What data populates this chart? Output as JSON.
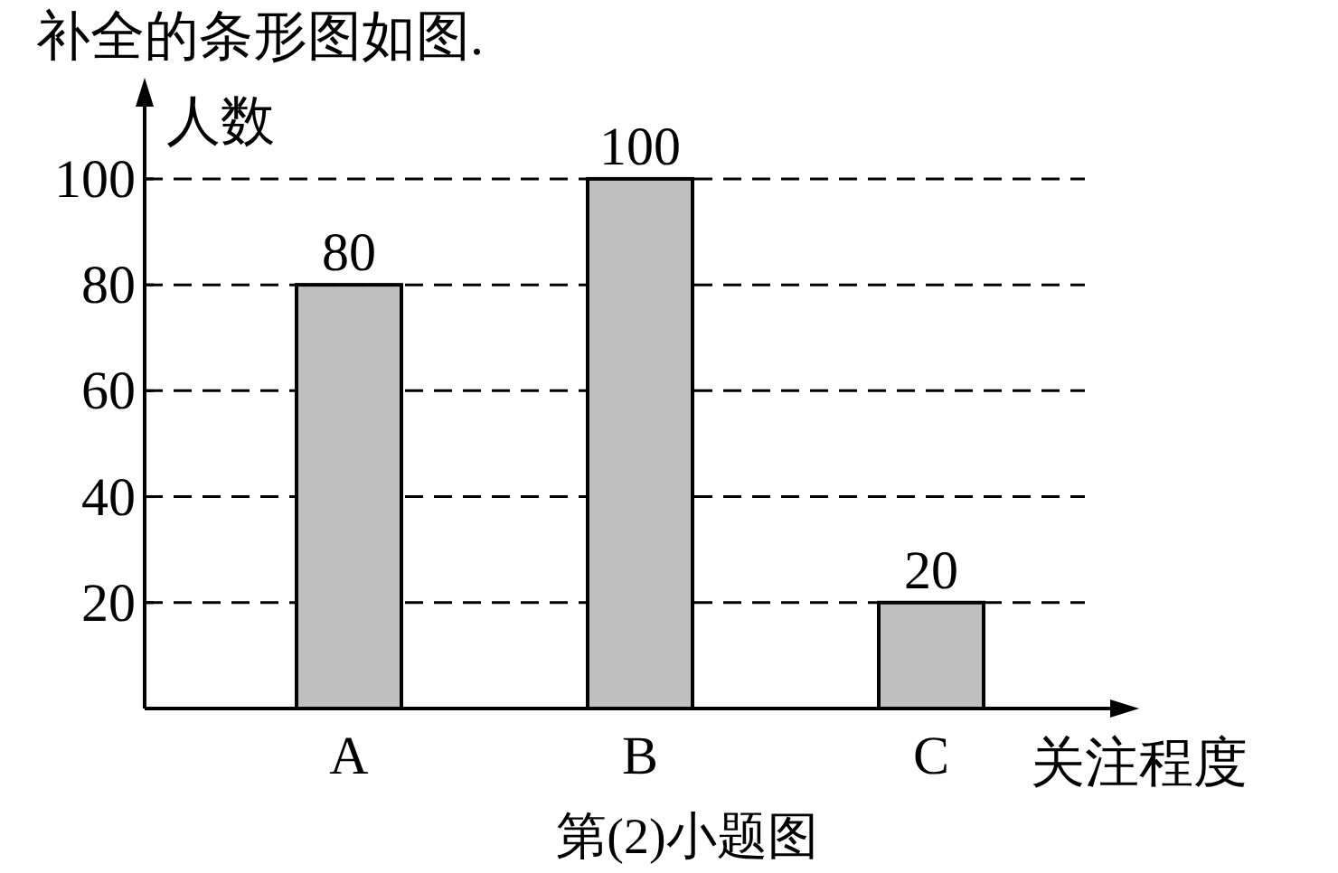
{
  "chart_data": {
    "type": "bar",
    "title": "补全的条形图如图.",
    "xlabel": "关注程度",
    "ylabel": "人数",
    "categories": [
      "A",
      "B",
      "C"
    ],
    "values": [
      80,
      100,
      20
    ],
    "color": "#bfbfbf",
    "ylim": [
      0,
      115
    ],
    "yticks": [
      20,
      40,
      60,
      80,
      100
    ],
    "grid": "y",
    "data_labels": true,
    "annotations": [
      "第(2)小题图"
    ]
  }
}
